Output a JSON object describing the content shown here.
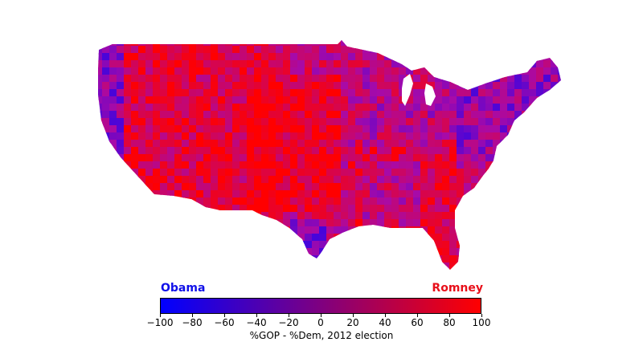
{
  "map": {
    "region": "United States (contiguous) counties",
    "scale_min": -100,
    "scale_max": 100,
    "low_color": "#0000ff",
    "high_color": "#ff0000",
    "dominant_colors": [
      "#d8103a",
      "#8a1a9a",
      "#5a1fc8",
      "#f00828"
    ]
  },
  "legend": {
    "left_label": "Obama",
    "right_label": "Romney",
    "left_color": "#1010e8",
    "right_color": "#e8101a",
    "ticks": [
      "−100",
      "−80",
      "−60",
      "−40",
      "−20",
      "0",
      "20",
      "40",
      "60",
      "80",
      "100"
    ],
    "caption": "%GOP - %Dem, 2012 election"
  }
}
